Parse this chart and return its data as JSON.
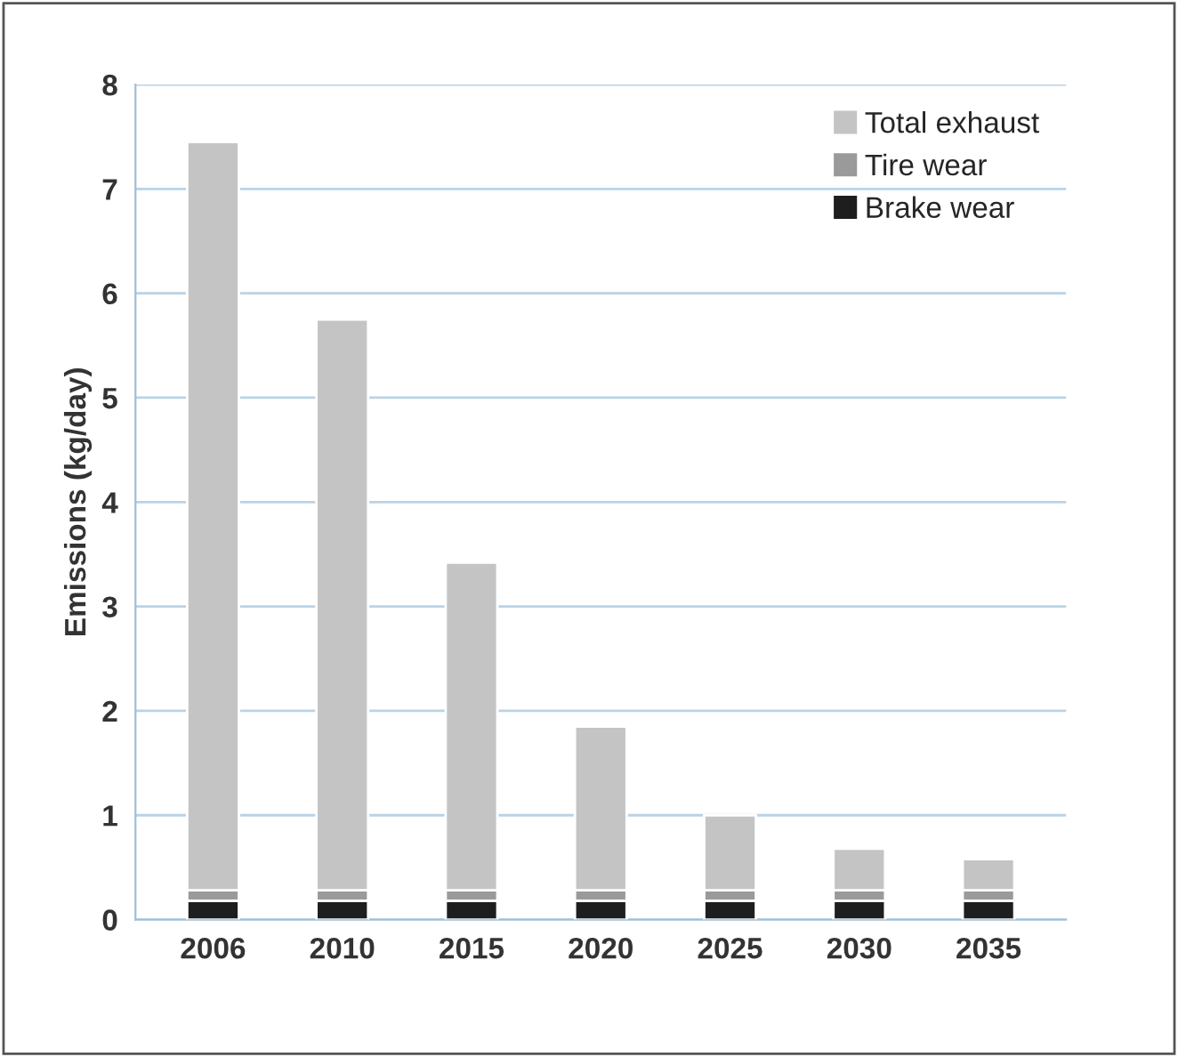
{
  "chart_data": {
    "type": "bar",
    "stacked": true,
    "ylabel": "Emissions (kg/day)",
    "categories": [
      "2006",
      "2010",
      "2015",
      "2020",
      "2025",
      "2030",
      "2035"
    ],
    "series": [
      {
        "name": "Brake wear",
        "color": "#1e1e1e",
        "values": [
          0.18,
          0.18,
          0.18,
          0.18,
          0.18,
          0.18,
          0.18
        ]
      },
      {
        "name": "Tire wear",
        "color": "#9a9a9a",
        "values": [
          0.1,
          0.1,
          0.1,
          0.1,
          0.1,
          0.1,
          0.1
        ]
      },
      {
        "name": "Total exhaust",
        "color": "#c4c4c4",
        "values": [
          7.17,
          5.47,
          3.14,
          1.57,
          0.72,
          0.4,
          0.3
        ]
      }
    ],
    "ylim": [
      0,
      8
    ],
    "yticks": [
      0,
      1,
      2,
      3,
      4,
      5,
      6,
      7,
      8
    ],
    "grid": "y",
    "legend": "top right"
  }
}
